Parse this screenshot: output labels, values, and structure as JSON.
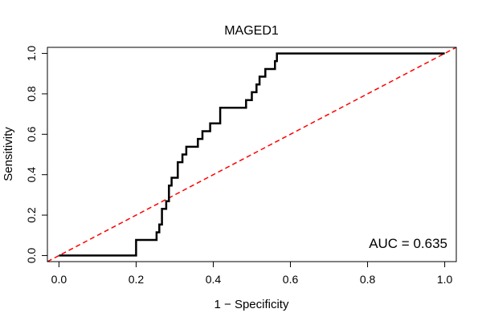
{
  "chart_data": {
    "type": "line",
    "title": "MAGED1",
    "xlabel": "1 − Specificity",
    "ylabel": "Sensitivity",
    "xlim": [
      -0.03,
      1.03
    ],
    "ylim": [
      -0.03,
      1.03
    ],
    "x_ticks": [
      0.0,
      0.2,
      0.4,
      0.6,
      0.8,
      1.0
    ],
    "x_tick_labels": [
      "0.0",
      "0.2",
      "0.4",
      "0.6",
      "0.8",
      "1.0"
    ],
    "y_ticks": [
      0.0,
      0.2,
      0.4,
      0.6,
      0.8,
      1.0
    ],
    "y_tick_labels": [
      "0.0",
      "0.2",
      "0.4",
      "0.6",
      "0.8",
      "1.0"
    ],
    "annotation": "AUC = 0.635",
    "series": [
      {
        "name": "ROC curve",
        "color": "#000000",
        "points": [
          [
            0.0,
            0.0
          ],
          [
            0.2,
            0.0
          ],
          [
            0.2,
            0.077
          ],
          [
            0.253,
            0.077
          ],
          [
            0.253,
            0.115
          ],
          [
            0.26,
            0.115
          ],
          [
            0.26,
            0.154
          ],
          [
            0.267,
            0.154
          ],
          [
            0.267,
            0.231
          ],
          [
            0.278,
            0.231
          ],
          [
            0.278,
            0.269
          ],
          [
            0.285,
            0.269
          ],
          [
            0.285,
            0.346
          ],
          [
            0.292,
            0.346
          ],
          [
            0.292,
            0.385
          ],
          [
            0.308,
            0.385
          ],
          [
            0.308,
            0.462
          ],
          [
            0.32,
            0.462
          ],
          [
            0.32,
            0.5
          ],
          [
            0.33,
            0.5
          ],
          [
            0.33,
            0.538
          ],
          [
            0.36,
            0.538
          ],
          [
            0.36,
            0.577
          ],
          [
            0.372,
            0.577
          ],
          [
            0.372,
            0.615
          ],
          [
            0.392,
            0.615
          ],
          [
            0.392,
            0.654
          ],
          [
            0.418,
            0.654
          ],
          [
            0.418,
            0.731
          ],
          [
            0.485,
            0.731
          ],
          [
            0.485,
            0.769
          ],
          [
            0.5,
            0.769
          ],
          [
            0.5,
            0.808
          ],
          [
            0.512,
            0.808
          ],
          [
            0.512,
            0.846
          ],
          [
            0.52,
            0.846
          ],
          [
            0.52,
            0.885
          ],
          [
            0.535,
            0.885
          ],
          [
            0.535,
            0.923
          ],
          [
            0.56,
            0.923
          ],
          [
            0.56,
            0.962
          ],
          [
            0.565,
            0.962
          ],
          [
            0.565,
            1.0
          ],
          [
            1.0,
            1.0
          ]
        ]
      },
      {
        "name": "reference",
        "color": "#ff0000",
        "style": "dashed",
        "points": [
          [
            -0.03,
            -0.03
          ],
          [
            1.03,
            1.03
          ]
        ]
      }
    ]
  }
}
